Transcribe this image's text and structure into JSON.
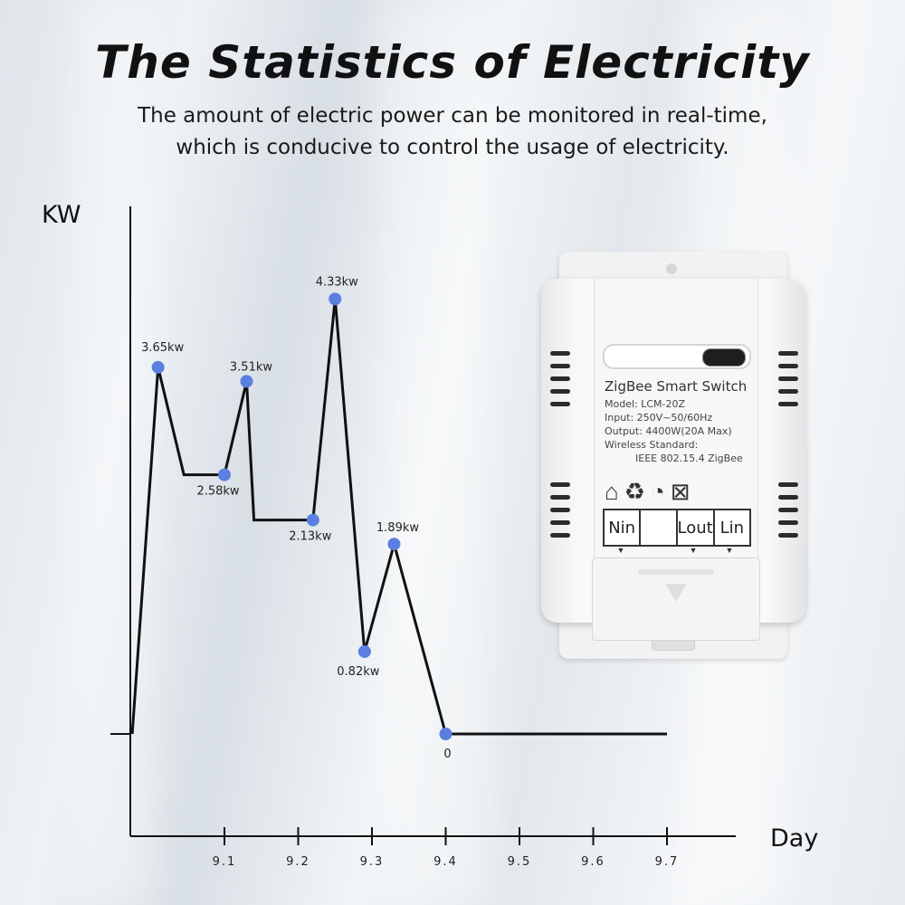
{
  "page": {
    "title": "The Statistics of Electricity",
    "subtitle_line1": "The amount of electric power can be monitored in real-time,",
    "subtitle_line2": "which is conducive to control the usage of electricity."
  },
  "chart_data": {
    "type": "line",
    "xlabel": "Day",
    "ylabel": "KW",
    "x_ticks": [
      "9.1",
      "9.2",
      "9.3",
      "9.4",
      "9.5",
      "9.6",
      "9.7"
    ],
    "series_color": "#5b7fe0",
    "line_color": "#111111",
    "points": [
      {
        "x": 9.01,
        "y": 3.65,
        "label": "3.65kw"
      },
      {
        "x": 9.1,
        "y": 2.58,
        "label": "2.58kw"
      },
      {
        "x": 9.13,
        "y": 3.51,
        "label": "3.51kw"
      },
      {
        "x": 9.22,
        "y": 2.13,
        "label": "2.13kw"
      },
      {
        "x": 9.25,
        "y": 4.33,
        "label": "4.33kw"
      },
      {
        "x": 9.29,
        "y": 0.82,
        "label": "0.82kw"
      },
      {
        "x": 9.33,
        "y": 1.89,
        "label": "1.89kw"
      },
      {
        "x": 9.4,
        "y": 0,
        "label": "0"
      }
    ],
    "path_vertices": [
      {
        "x": 8.975,
        "y": 0
      },
      {
        "x": 9.01,
        "y": 3.65
      },
      {
        "x": 9.045,
        "y": 2.58
      },
      {
        "x": 9.1,
        "y": 2.58
      },
      {
        "x": 9.13,
        "y": 3.51
      },
      {
        "x": 9.14,
        "y": 2.13
      },
      {
        "x": 9.22,
        "y": 2.13
      },
      {
        "x": 9.25,
        "y": 4.33
      },
      {
        "x": 9.29,
        "y": 0.82
      },
      {
        "x": 9.33,
        "y": 1.89
      },
      {
        "x": 9.4,
        "y": 0
      },
      {
        "x": 9.7,
        "y": 0
      }
    ]
  },
  "device": {
    "name": "ZigBee Smart Switch",
    "model": "Model: LCM-20Z",
    "input": "Input: 250V~50/60Hz",
    "output": "Output: 4400W(20A Max)",
    "wireless": "Wireless Standard:",
    "standard": "IEEE 802.15.4  ZigBee",
    "terminals": [
      "Nin",
      "",
      "Lout",
      "Lin"
    ]
  }
}
